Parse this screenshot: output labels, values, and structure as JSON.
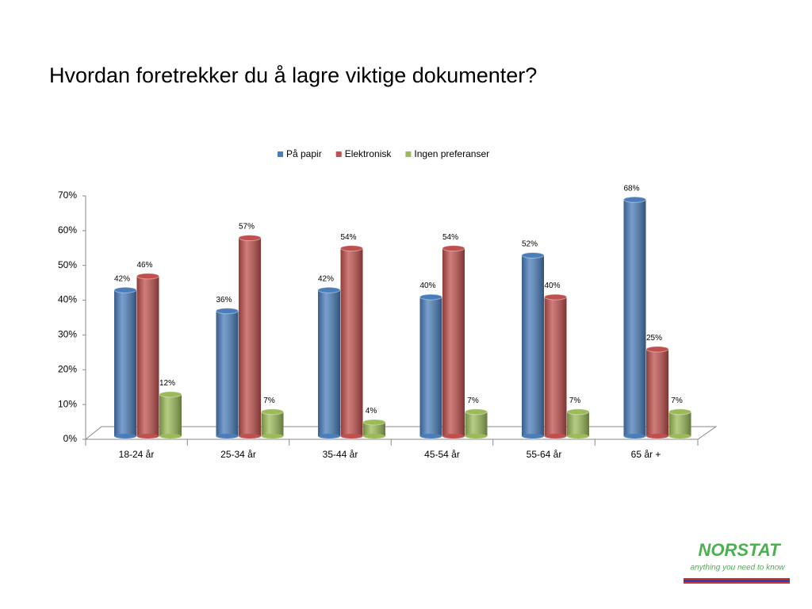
{
  "chart_data": {
    "type": "bar",
    "title": "Hvordan foretrekker du å lagre viktige dokumenter?",
    "categories": [
      "18-24 år",
      "25-34 år",
      "35-44 år",
      "45-54 år",
      "55-64 år",
      "65 år +"
    ],
    "series": [
      {
        "name": "På papir",
        "color": "#4a7ebb",
        "values": [
          42,
          36,
          42,
          40,
          52,
          68
        ],
        "value_labels": [
          "42%",
          "36%",
          "42%",
          "40%",
          "52%",
          "68%"
        ]
      },
      {
        "name": "Elektronisk",
        "color": "#c0504d",
        "values": [
          46,
          57,
          54,
          54,
          40,
          25
        ],
        "value_labels": [
          "46%",
          "57%",
          "54%",
          "54%",
          "40%",
          "25%"
        ]
      },
      {
        "name": "Ingen preferanser",
        "color": "#9bbb59",
        "values": [
          12,
          7,
          4,
          7,
          7,
          7
        ],
        "value_labels": [
          "12%",
          "7%",
          "4%",
          "7%",
          "7%",
          "7%"
        ]
      }
    ],
    "ylim": [
      0,
      70
    ],
    "yticks": [
      {
        "value": 0,
        "label": "0%"
      },
      {
        "value": 10,
        "label": "10%"
      },
      {
        "value": 20,
        "label": "20%"
      },
      {
        "value": 30,
        "label": "30%"
      },
      {
        "value": 40,
        "label": "40%"
      },
      {
        "value": 50,
        "label": "50%"
      },
      {
        "value": 60,
        "label": "60%"
      },
      {
        "value": 70,
        "label": "70%"
      }
    ],
    "legend": "top"
  },
  "logo": {
    "name": "NORSTAT",
    "tagline": "anything you need to know"
  }
}
